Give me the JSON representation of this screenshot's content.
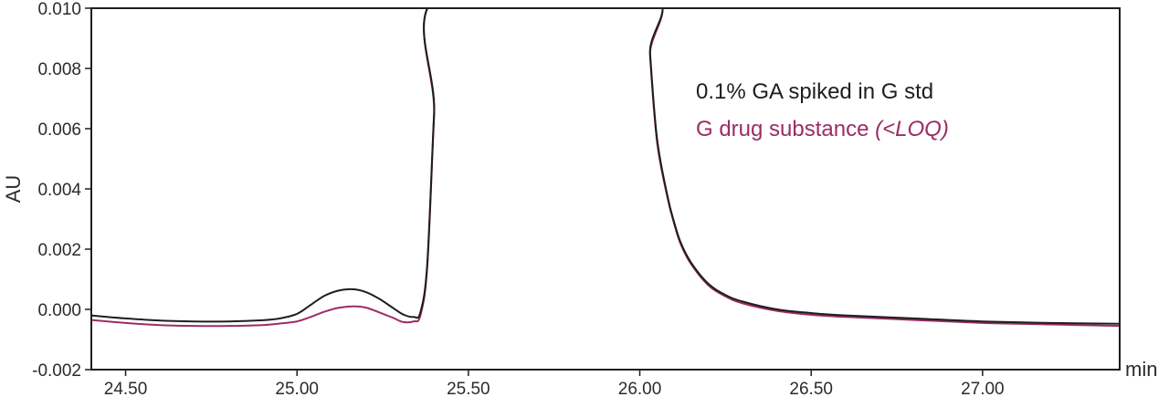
{
  "chart_data": {
    "type": "line",
    "title": "",
    "xlabel": "min",
    "ylabel": "AU",
    "xlim": [
      24.4,
      27.4
    ],
    "ylim": [
      -0.002,
      0.01
    ],
    "grid": false,
    "legend_position": "top-right",
    "x_ticks": [
      "24.50",
      "25.00",
      "25.50",
      "26.00",
      "26.50",
      "27.00"
    ],
    "x_tick_values": [
      24.5,
      25.0,
      25.5,
      26.0,
      26.5,
      27.0
    ],
    "y_ticks": [
      "-0.002",
      "0.000",
      "0.002",
      "0.004",
      "0.006",
      "0.008",
      "0.010"
    ],
    "y_tick_values": [
      -0.002,
      0.0,
      0.002,
      0.004,
      0.006,
      0.008,
      0.01
    ],
    "legend": {
      "line1": "0.1% GA spiked in G std",
      "line2_main": "G drug substance ",
      "line2_note": "(<LOQ)"
    },
    "series": [
      {
        "name": "0.1% GA spiked in G std",
        "color": "#1e1e1e",
        "x": [
          24.4,
          24.5,
          24.6,
          24.7,
          24.8,
          24.9,
          24.95,
          25.0,
          25.04,
          25.08,
          25.12,
          25.16,
          25.2,
          25.24,
          25.28,
          25.31,
          25.34,
          25.36,
          25.38,
          25.4,
          25.42,
          26.02,
          26.03,
          26.05,
          26.08,
          26.1,
          26.12,
          26.15,
          26.2,
          26.25,
          26.3,
          26.4,
          26.5,
          26.6,
          26.8,
          27.0,
          27.2,
          27.4
        ],
        "y": [
          -0.0002,
          -0.0003,
          -0.00037,
          -0.0004,
          -0.0004,
          -0.00036,
          -0.0003,
          -0.00015,
          0.00015,
          0.00045,
          0.00062,
          0.00067,
          0.00058,
          0.00035,
          5e-05,
          -0.00017,
          -0.00025,
          -0.0001,
          0.0015,
          0.0065,
          0.0105,
          0.0105,
          0.0085,
          0.0057,
          0.0038,
          0.0029,
          0.0022,
          0.00155,
          0.00085,
          0.00048,
          0.00026,
          0.0,
          -0.00012,
          -0.0002,
          -0.0003,
          -0.0004,
          -0.00045,
          -0.00048
        ]
      },
      {
        "name": "G drug substance (<LOQ)",
        "color": "#9b2d63",
        "x": [
          24.4,
          24.5,
          24.6,
          24.7,
          24.8,
          24.9,
          24.95,
          25.0,
          25.04,
          25.08,
          25.12,
          25.16,
          25.2,
          25.24,
          25.28,
          25.31,
          25.34,
          25.36,
          25.38,
          25.4,
          25.42,
          26.02,
          26.03,
          26.05,
          26.08,
          26.1,
          26.12,
          26.15,
          26.2,
          26.25,
          26.3,
          26.4,
          26.5,
          26.6,
          26.8,
          27.0,
          27.2,
          27.4
        ],
        "y": [
          -0.00035,
          -0.00045,
          -0.00052,
          -0.00055,
          -0.00055,
          -0.00052,
          -0.00047,
          -0.0004,
          -0.00025,
          -8e-05,
          5e-05,
          0.0001,
          6e-05,
          -0.0001,
          -0.00028,
          -0.00042,
          -0.0004,
          -0.0002,
          0.0014,
          0.0064,
          0.0105,
          0.0105,
          0.0084,
          0.0056,
          0.00375,
          0.00285,
          0.00215,
          0.0015,
          0.0008,
          0.00043,
          0.0002,
          -5e-05,
          -0.00018,
          -0.00025,
          -0.00035,
          -0.00045,
          -0.0005,
          -0.00055
        ]
      }
    ]
  }
}
